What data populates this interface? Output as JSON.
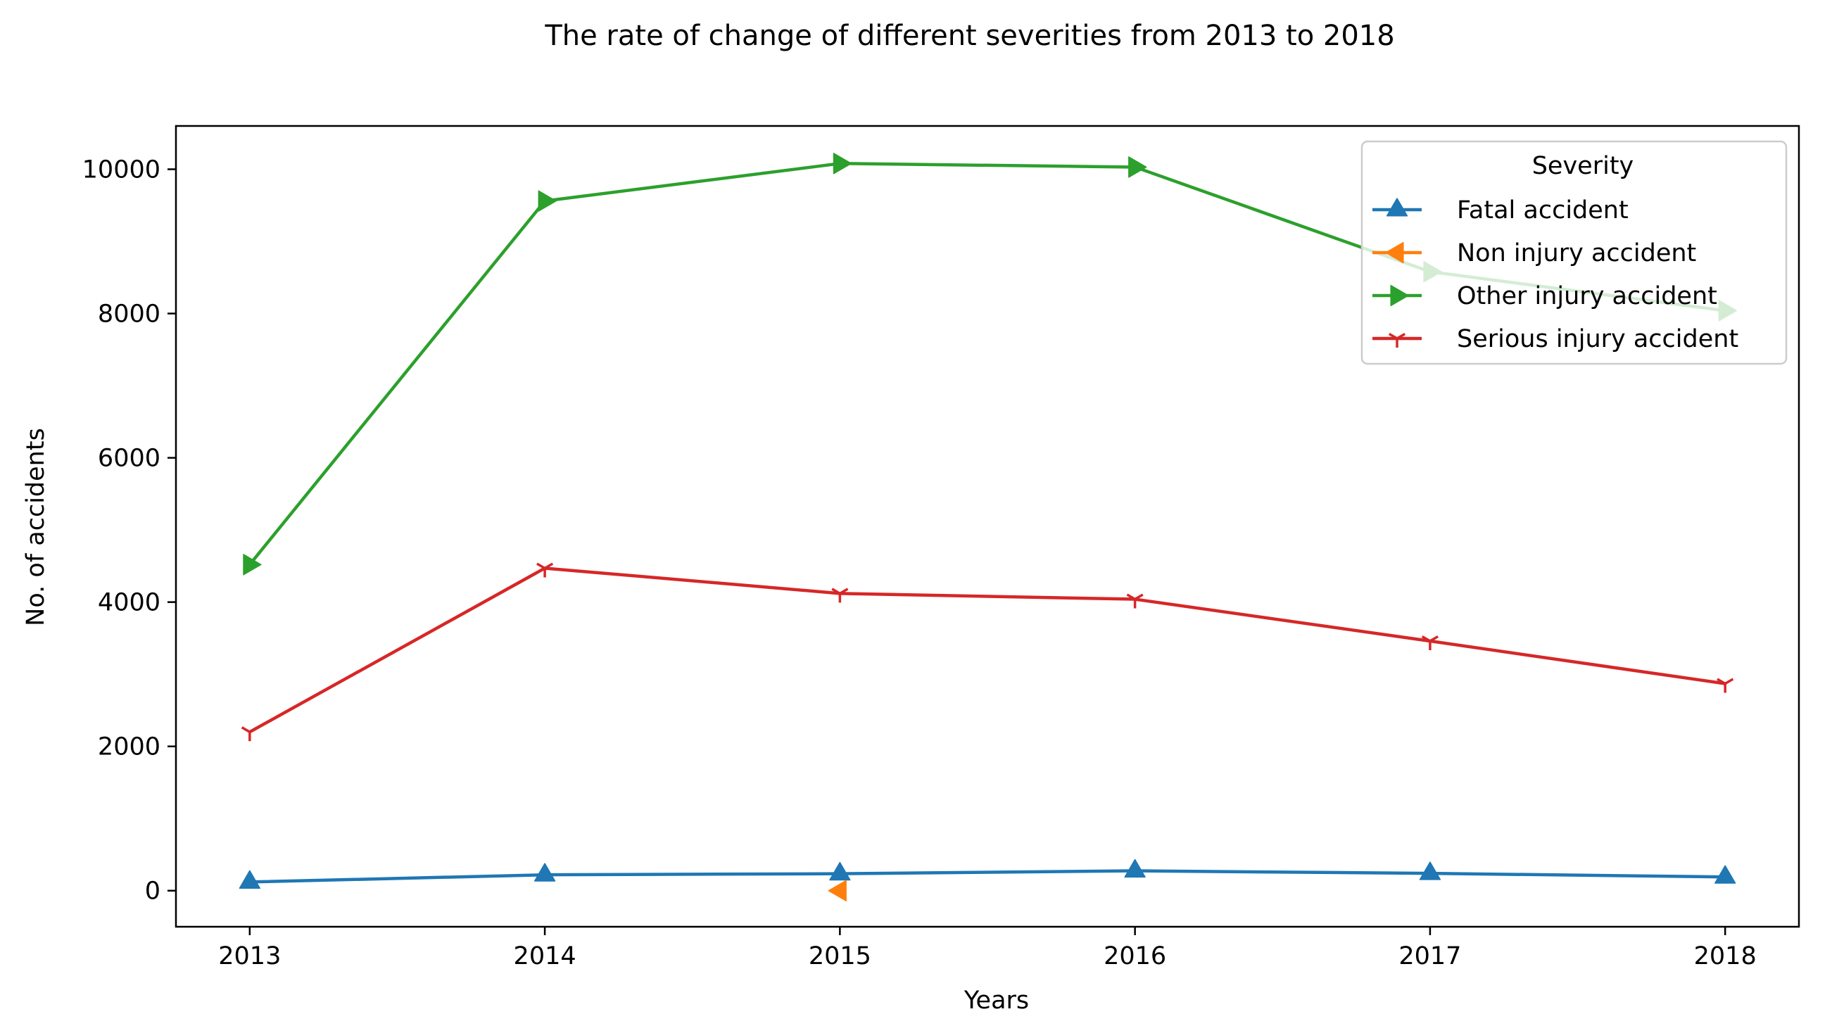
{
  "chart_data": {
    "type": "line",
    "title": "The rate of change of different severities from 2013 to 2018",
    "xlabel": "Years",
    "ylabel": "No. of accidents",
    "x": [
      2013,
      2014,
      2015,
      2016,
      2017,
      2018
    ],
    "x_ticks": [
      "2013",
      "2014",
      "2015",
      "2016",
      "2017",
      "2018"
    ],
    "y_ticks": [
      "0",
      "2000",
      "4000",
      "6000",
      "8000",
      "10000"
    ],
    "ylim": [
      -500,
      10600
    ],
    "xlim": [
      2012.75,
      2018.25
    ],
    "grid": false,
    "legend": {
      "title": "Severity",
      "placement": "top-right"
    },
    "series": [
      {
        "name": "Fatal accident",
        "color": "#1f77b4",
        "marker": "triangle-up",
        "x": [
          2013,
          2014,
          2015,
          2016,
          2017,
          2018
        ],
        "values": [
          120,
          220,
          235,
          275,
          240,
          190
        ]
      },
      {
        "name": "Non injury accident",
        "color": "#ff7f0e",
        "marker": "triangle-left",
        "x": [
          2015
        ],
        "values": [
          0
        ]
      },
      {
        "name": "Other injury accident",
        "color": "#2ca02c",
        "marker": "triangle-right",
        "x": [
          2013,
          2014,
          2015,
          2016,
          2017,
          2018
        ],
        "values": [
          4520,
          9560,
          10080,
          10030,
          8580,
          8040
        ]
      },
      {
        "name": "Serious injury accident",
        "color": "#d62728",
        "marker": "tri-down",
        "x": [
          2013,
          2014,
          2015,
          2016,
          2017,
          2018
        ],
        "values": [
          2200,
          4470,
          4120,
          4040,
          3460,
          2870
        ]
      }
    ]
  }
}
